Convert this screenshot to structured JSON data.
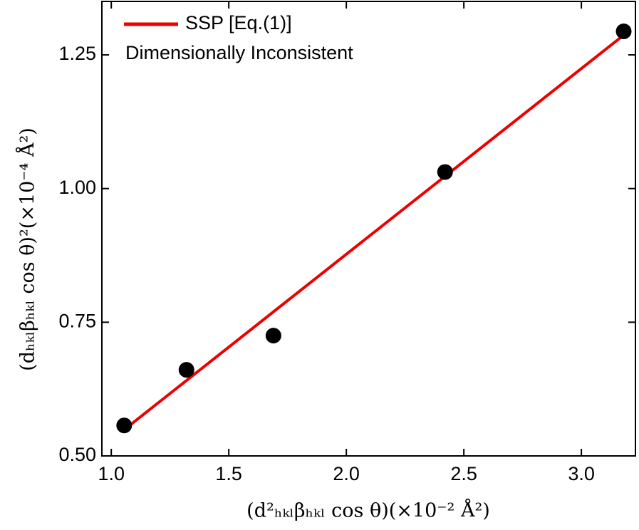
{
  "chart_data": {
    "type": "scatter",
    "xlabel": "(d²ₕₖₗβₕₖₗ cos θ)(×10⁻² Å²)",
    "ylabel": "(dₕₖₗβₕₖₗ cos θ)²(×10⁻⁴ Å²)",
    "annotation": "Dimensionally Inconsistent",
    "xlim": [
      0.96,
      3.23
    ],
    "ylim": [
      0.5,
      1.35
    ],
    "xticks": [
      {
        "value": 1,
        "label": "1.0"
      },
      {
        "value": 1.5,
        "label": "1.5"
      },
      {
        "value": 2,
        "label": "2.0"
      },
      {
        "value": 2.5,
        "label": "2.5"
      },
      {
        "value": 3,
        "label": "3.0"
      }
    ],
    "yticks": [
      {
        "value": 0.5,
        "label": "0.50"
      },
      {
        "value": 0.75,
        "label": "0.75"
      },
      {
        "value": 1,
        "label": "1.00"
      },
      {
        "value": 1.25,
        "label": "1.25"
      }
    ],
    "points": {
      "color": "#000000",
      "x": [
        1.055,
        1.32,
        1.69,
        2.42,
        3.18
      ],
      "values": [
        0.557,
        0.661,
        0.725,
        1.031,
        1.294
      ]
    },
    "series": [
      {
        "name": "SSP [Eq.(1)]",
        "color": "#ee0000",
        "x": [
          1.055,
          3.18
        ],
        "values": [
          0.549,
          1.287
        ]
      }
    ],
    "legend": "upper left"
  }
}
